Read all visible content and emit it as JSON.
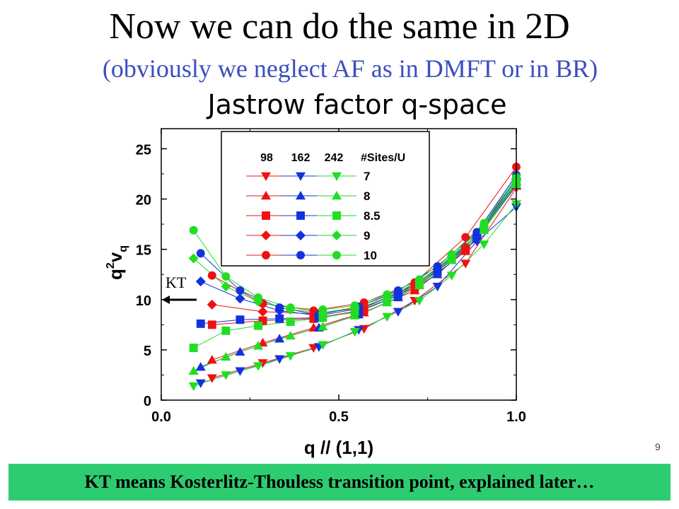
{
  "slide": {
    "title": "Now we can do the same  in 2D",
    "subtitle": "(obviously we neglect AF as in DMFT or in BR)",
    "page_number": "9",
    "footer": "KT means Kosterlitz-Thouless transition point,  explained later…"
  },
  "colors": {
    "red": "#ee1111",
    "blue": "#1133dd",
    "green": "#22dd22",
    "footer_bg": "#2ecc71",
    "subtitle": "#3a4fbf"
  },
  "chart_data": {
    "type": "scatter",
    "title": "Jastrow factor q-space",
    "xlabel": "q // (1,1)",
    "ylabel": "q²v_q",
    "ylabel_main": "q",
    "ylabel_sup": "2",
    "ylabel_v": "v",
    "ylabel_sub": "q",
    "xlim": [
      0.0,
      1.0
    ],
    "ylim": [
      0,
      27
    ],
    "xticks": [
      0.0,
      0.5,
      1.0
    ],
    "xtick_labels": [
      "0.0",
      "0.5",
      "1.0"
    ],
    "yticks": [
      0,
      5,
      10,
      15,
      20,
      25
    ],
    "ytick_labels": [
      "0",
      "5",
      "10",
      "15",
      "20",
      "25"
    ],
    "annotation": {
      "text": "KT",
      "y": 10.0
    },
    "legend": {
      "placement": "top-center",
      "header": [
        "98",
        "162",
        "242",
        "#Sites/U"
      ],
      "rows": [
        {
          "U": "7",
          "marker": "triangle-down"
        },
        {
          "U": "8",
          "marker": "triangle-up"
        },
        {
          "U": "8.5",
          "marker": "square"
        },
        {
          "U": "9",
          "marker": "diamond"
        },
        {
          "U": "10",
          "marker": "circle"
        }
      ]
    },
    "series": [
      {
        "sites": "98",
        "U": "7",
        "color": "red",
        "marker": "triangle-down",
        "x": [
          0.143,
          0.286,
          0.429,
          0.571,
          0.714,
          0.857,
          1.0
        ],
        "y": [
          2.2,
          3.7,
          5.2,
          7.1,
          9.9,
          13.6,
          21.1
        ]
      },
      {
        "sites": "98",
        "U": "8",
        "color": "red",
        "marker": "triangle-up",
        "x": [
          0.143,
          0.286,
          0.429,
          0.571,
          0.714,
          0.857,
          1.0
        ],
        "y": [
          4.0,
          5.7,
          7.2,
          8.7,
          10.9,
          14.8,
          21.3
        ]
      },
      {
        "sites": "98",
        "U": "8.5",
        "color": "red",
        "marker": "square",
        "x": [
          0.143,
          0.286,
          0.429,
          0.571,
          0.714,
          0.857,
          1.0
        ],
        "y": [
          7.5,
          7.9,
          8.1,
          9.0,
          11.2,
          15.0,
          21.5
        ]
      },
      {
        "sites": "98",
        "U": "9",
        "color": "red",
        "marker": "diamond",
        "x": [
          0.143,
          0.286,
          0.429,
          0.571,
          0.714,
          0.857,
          1.0
        ],
        "y": [
          9.5,
          8.8,
          8.6,
          9.2,
          11.4,
          15.2,
          21.9
        ]
      },
      {
        "sites": "98",
        "U": "10",
        "color": "red",
        "marker": "circle",
        "x": [
          0.143,
          0.286,
          0.429,
          0.571,
          0.714,
          0.857,
          1.0
        ],
        "y": [
          12.4,
          9.6,
          8.9,
          9.7,
          11.7,
          16.2,
          23.2
        ]
      },
      {
        "sites": "162",
        "U": "7",
        "color": "blue",
        "marker": "triangle-down",
        "x": [
          0.111,
          0.222,
          0.333,
          0.444,
          0.556,
          0.667,
          0.778,
          0.889,
          1.0
        ],
        "y": [
          1.7,
          2.9,
          4.1,
          5.3,
          7.0,
          8.8,
          11.3,
          15.8,
          19.2
        ]
      },
      {
        "sites": "162",
        "U": "8",
        "color": "blue",
        "marker": "triangle-up",
        "x": [
          0.111,
          0.222,
          0.333,
          0.444,
          0.556,
          0.667,
          0.778,
          0.889,
          1.0
        ],
        "y": [
          3.3,
          4.8,
          6.1,
          7.2,
          8.5,
          10.2,
          12.5,
          16.0,
          21.4
        ]
      },
      {
        "sites": "162",
        "U": "8.5",
        "color": "blue",
        "marker": "square",
        "x": [
          0.111,
          0.222,
          0.333,
          0.444,
          0.556,
          0.667,
          0.778,
          0.889,
          1.0
        ],
        "y": [
          7.6,
          8.0,
          8.1,
          8.2,
          8.8,
          10.4,
          12.8,
          16.2,
          21.7
        ]
      },
      {
        "sites": "162",
        "U": "9",
        "color": "blue",
        "marker": "diamond",
        "x": [
          0.111,
          0.222,
          0.333,
          0.444,
          0.556,
          0.667,
          0.778,
          0.889,
          1.0
        ],
        "y": [
          11.8,
          10.1,
          8.9,
          8.4,
          9.1,
          10.6,
          13.0,
          16.4,
          22.0
        ]
      },
      {
        "sites": "162",
        "U": "10",
        "color": "blue",
        "marker": "circle",
        "x": [
          0.111,
          0.222,
          0.333,
          0.444,
          0.556,
          0.667,
          0.778,
          0.889,
          1.0
        ],
        "y": [
          14.6,
          10.9,
          9.2,
          8.5,
          9.3,
          10.9,
          13.3,
          16.7,
          22.4
        ]
      },
      {
        "sites": "242",
        "U": "7",
        "color": "green",
        "marker": "triangle-down",
        "x": [
          0.091,
          0.182,
          0.273,
          0.364,
          0.455,
          0.545,
          0.636,
          0.727,
          0.818,
          0.909,
          1.0
        ],
        "y": [
          1.4,
          2.5,
          3.4,
          4.4,
          5.5,
          6.8,
          8.3,
          9.9,
          12.4,
          15.5,
          19.5
        ]
      },
      {
        "sites": "242",
        "U": "8",
        "color": "green",
        "marker": "triangle-up",
        "x": [
          0.091,
          0.182,
          0.273,
          0.364,
          0.455,
          0.545,
          0.636,
          0.727,
          0.818,
          0.909,
          1.0
        ],
        "y": [
          2.9,
          4.3,
          5.4,
          6.4,
          7.3,
          8.4,
          9.7,
          11.4,
          13.9,
          16.9,
          21.7
        ]
      },
      {
        "sites": "242",
        "U": "8.5",
        "color": "green",
        "marker": "square",
        "x": [
          0.091,
          0.182,
          0.273,
          0.364,
          0.455,
          0.545,
          0.636,
          0.727,
          0.818,
          0.909,
          1.0
        ],
        "y": [
          5.2,
          6.9,
          7.4,
          7.8,
          8.2,
          8.8,
          10.0,
          11.6,
          14.1,
          17.1,
          21.5
        ]
      },
      {
        "sites": "242",
        "U": "9",
        "color": "green",
        "marker": "diamond",
        "x": [
          0.091,
          0.182,
          0.273,
          0.364,
          0.455,
          0.545,
          0.636,
          0.727,
          0.818,
          0.909,
          1.0
        ],
        "y": [
          14.1,
          11.3,
          9.8,
          9.0,
          8.7,
          9.2,
          10.3,
          11.8,
          14.3,
          17.3,
          21.9
        ]
      },
      {
        "sites": "242",
        "U": "10",
        "color": "green",
        "marker": "circle",
        "x": [
          0.091,
          0.182,
          0.273,
          0.364,
          0.455,
          0.545,
          0.636,
          0.727,
          0.818,
          0.909,
          1.0
        ],
        "y": [
          16.9,
          12.3,
          10.2,
          9.2,
          9.0,
          9.4,
          10.5,
          12.0,
          14.5,
          17.6,
          22.2
        ]
      }
    ]
  }
}
